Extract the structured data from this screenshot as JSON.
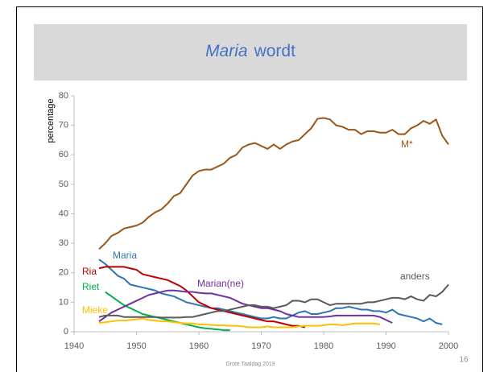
{
  "chart_data": {
    "type": "line",
    "title": {
      "emphasis": "Maria",
      "rest": "wordt"
    },
    "ylabel": "percentage",
    "footer": "Grote Taaldag 2019",
    "page_number": "16",
    "x": [
      1944,
      1945,
      1946,
      1947,
      1948,
      1949,
      1950,
      1951,
      1952,
      1953,
      1954,
      1955,
      1956,
      1957,
      1958,
      1959,
      1960,
      1961,
      1962,
      1963,
      1964,
      1965,
      1966,
      1967,
      1968,
      1969,
      1970,
      1971,
      1972,
      1973,
      1974,
      1975,
      1976,
      1977,
      1978,
      1979,
      1980,
      1981,
      1982,
      1983,
      1984,
      1985,
      1986,
      1987,
      1988,
      1989,
      1990,
      1991,
      1992,
      1993,
      1994,
      1995,
      1996,
      1997,
      1998,
      1999,
      2000
    ],
    "xlim": [
      1940,
      2000
    ],
    "xticks": [
      1940,
      1950,
      1960,
      1970,
      1980,
      1990,
      2000
    ],
    "ylim": [
      0,
      80
    ],
    "yticks": [
      0,
      10,
      20,
      30,
      40,
      50,
      60,
      70,
      80
    ],
    "series": [
      {
        "name": "M*",
        "color": "#9c5517",
        "values": [
          28,
          30,
          32.5,
          33.5,
          35,
          35.5,
          36,
          37,
          39,
          40.5,
          41.5,
          43.5,
          46,
          47,
          50,
          53,
          54.5,
          55,
          55,
          56,
          57,
          59,
          60,
          62.5,
          63.5,
          64,
          63,
          62,
          63.5,
          62,
          63.5,
          64.5,
          65,
          67,
          69,
          72.2,
          72.5,
          72,
          70,
          69.5,
          68.5,
          68.5,
          67,
          68,
          68,
          67.5,
          67.5,
          68.5,
          67,
          67,
          69,
          70,
          71.5,
          70.5,
          72,
          66.5,
          63.5
        ]
      },
      {
        "name": "Maria",
        "color": "#2e75b6",
        "values": [
          24.5,
          23,
          21,
          19,
          18,
          16,
          15.5,
          15,
          14.5,
          14,
          13,
          12.5,
          12,
          11,
          10,
          9.5,
          9,
          8.5,
          8,
          8,
          7.5,
          7,
          6.5,
          6,
          5.5,
          5,
          4.5,
          4.5,
          5,
          4.5,
          4.5,
          5.5,
          6.5,
          7,
          6,
          6,
          6.5,
          7,
          8,
          8,
          8.5,
          8,
          7.5,
          7.5,
          7,
          7,
          6.5,
          7.5,
          6,
          5.5,
          5,
          4.5,
          3.5,
          4.5,
          3,
          2.5,
          null
        ]
      },
      {
        "name": "Ria",
        "color": "#c00000",
        "values": [
          21.5,
          22,
          22,
          22,
          22,
          21.5,
          21,
          19.5,
          19,
          18.5,
          18,
          17.5,
          16.5,
          15.5,
          14,
          12,
          10,
          9,
          8,
          7.5,
          7,
          6.5,
          6,
          5.5,
          5,
          4.5,
          4,
          3.5,
          3.5,
          3,
          2.5,
          2,
          2,
          1.5,
          null,
          null,
          null,
          null,
          null,
          null,
          null,
          null,
          null,
          null,
          null,
          null,
          null,
          null,
          null,
          null,
          null,
          null,
          null,
          null,
          null,
          null,
          null
        ]
      },
      {
        "name": "Riet",
        "color": "#00b050",
        "values": [
          null,
          13.5,
          12,
          10.5,
          9,
          8,
          7,
          6,
          5.5,
          5,
          4.5,
          4,
          3.5,
          3,
          2.5,
          2,
          1.5,
          1.2,
          1,
          0.8,
          0.5,
          0.5,
          null,
          null,
          null,
          null,
          null,
          null,
          null,
          null,
          null,
          null,
          null,
          null,
          null,
          null,
          null,
          null,
          null,
          null,
          null,
          null,
          null,
          null,
          null,
          null,
          null,
          null,
          null,
          null,
          null,
          null,
          null,
          null,
          null,
          null,
          null
        ]
      },
      {
        "name": "Mieke",
        "color": "#ffc000",
        "values": [
          3,
          3.2,
          3.5,
          3.8,
          3.8,
          4,
          4.2,
          4.5,
          4,
          3.8,
          3.5,
          3.5,
          3.2,
          3,
          2.8,
          2.8,
          2.5,
          2.5,
          2.3,
          2.2,
          2.2,
          2,
          2,
          1.8,
          1.5,
          1.5,
          1.5,
          1.8,
          1.5,
          1.5,
          1.5,
          1.5,
          1.8,
          2,
          2,
          2,
          2.2,
          2.5,
          2.5,
          2.2,
          2.5,
          2.8,
          2.8,
          2.8,
          2.8,
          2.5,
          null,
          null,
          null,
          null,
          null,
          null,
          null,
          null,
          null,
          null,
          null
        ]
      },
      {
        "name": "Marian(ne)",
        "color": "#7030a0",
        "values": [
          3.5,
          5,
          6.5,
          7.5,
          8.5,
          9.5,
          10.5,
          11.5,
          12.5,
          13,
          13.5,
          14,
          14,
          13.8,
          13.5,
          13.5,
          13.2,
          13,
          13,
          12.5,
          12,
          11.5,
          10.5,
          9.5,
          9,
          8.5,
          8,
          8,
          7.5,
          7,
          6,
          5.5,
          5,
          5,
          5,
          5,
          5,
          5.2,
          5.5,
          5.5,
          5.5,
          5.5,
          5.5,
          5.5,
          5.5,
          5,
          4,
          3,
          null,
          null,
          null,
          null,
          null,
          null,
          null,
          null,
          null
        ]
      },
      {
        "name": "anders",
        "color": "#595959",
        "values": [
          5,
          5.5,
          5.5,
          5.5,
          5,
          5,
          5,
          5,
          5,
          5,
          4.8,
          4.8,
          4.8,
          4.8,
          5,
          5,
          5.5,
          6,
          6.5,
          7,
          7,
          7.5,
          8,
          8.5,
          9,
          9,
          8.5,
          8.5,
          8,
          8.5,
          9,
          10.5,
          10.5,
          10,
          11,
          11,
          10,
          9,
          9.5,
          9.5,
          9.5,
          9.5,
          9.5,
          10,
          10,
          10.5,
          11,
          11.5,
          11.5,
          11,
          12,
          11,
          10.5,
          12.5,
          12,
          13.5,
          16
        ]
      }
    ]
  }
}
